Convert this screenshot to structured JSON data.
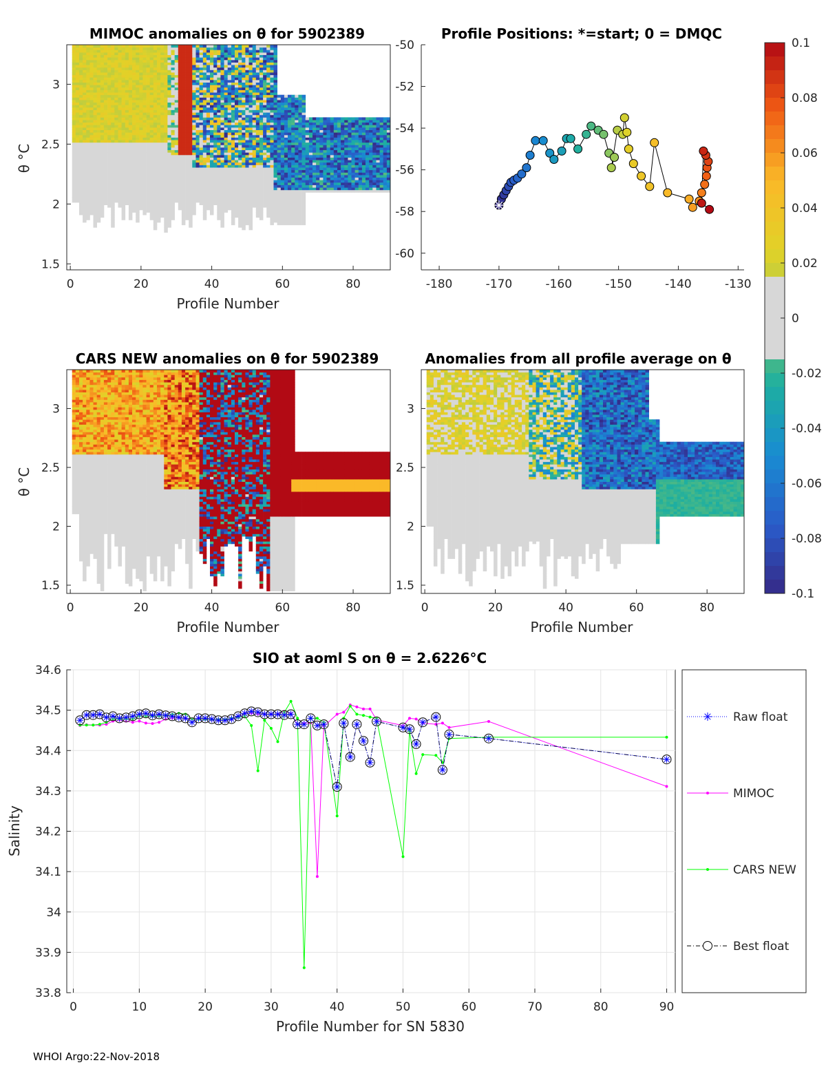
{
  "footer": "WHOI Argo:22-Nov-2018",
  "colorbar": {
    "ticks": [
      "0.1",
      "0.08",
      "0.06",
      "0.04",
      "0.02",
      "0",
      "-0.02",
      "-0.04",
      "-0.06",
      "-0.08",
      "-0.1"
    ],
    "range": [
      -0.1,
      0.1
    ]
  },
  "chart_data": [
    {
      "id": "mimoc",
      "type": "heatmap",
      "title": "MIMOC anomalies on θ  for 5902389",
      "xlabel": "Profile Number",
      "ylabel": "θ °C",
      "xlim": [
        -1,
        90.5
      ],
      "ylim": [
        1.45,
        3.33
      ],
      "xticks": [
        "0",
        "20",
        "40",
        "60",
        "80"
      ],
      "yticks": [
        "1.5",
        "2",
        "2.5",
        "3"
      ]
    },
    {
      "id": "positions",
      "type": "scatter",
      "title": "Profile Positions: *=start; 0 = DMQC",
      "xlim": [
        -183,
        -129
      ],
      "ylim": [
        -60.8,
        -50
      ],
      "xticks": [
        "-180",
        "-170",
        "-160",
        "-150",
        "-140",
        "-130"
      ],
      "yticks": [
        "-50",
        "-52",
        "-54",
        "-56",
        "-58",
        "-60"
      ],
      "lon": [
        -170,
        -169.6,
        -169.2,
        -168.8,
        -168.4,
        -168.0,
        -167.5,
        -166.9,
        -166.2,
        -165.4,
        -164.8,
        -163.9,
        -162.6,
        -161.5,
        -160.8,
        -159.5,
        -158.7,
        -158.0,
        -156.8,
        -155.4,
        -154.6,
        -153.4,
        -152.5,
        -151.6,
        -150.7,
        -151.2,
        -150.2,
        -149.3,
        -149.0,
        -148.6,
        -148.3,
        -147.5,
        -146.2,
        -144.8,
        -144.0,
        -141.8,
        -138.2,
        -137.6,
        -136.5,
        -136.1,
        -135.6,
        -135.3,
        -135.2,
        -135.0,
        -135.4,
        -135.8,
        -136.1,
        -134.8
      ],
      "lat": [
        -57.7,
        -57.4,
        -57.2,
        -57.0,
        -56.8,
        -56.6,
        -56.5,
        -56.4,
        -56.2,
        -55.9,
        -55.3,
        -54.6,
        -54.6,
        -55.2,
        -55.5,
        -55.1,
        -54.5,
        -54.5,
        -55.0,
        -54.3,
        -53.9,
        -54.1,
        -54.3,
        -55.2,
        -55.4,
        -55.9,
        -54.1,
        -54.3,
        -53.5,
        -54.2,
        -55.0,
        -55.7,
        -56.3,
        -56.8,
        -54.7,
        -57.1,
        -57.4,
        -57.8,
        -57.5,
        -57.1,
        -56.7,
        -56.3,
        -55.9,
        -55.6,
        -55.3,
        -55.1,
        -57.6,
        -57.9
      ],
      "start_marker": "*"
    },
    {
      "id": "cars",
      "type": "heatmap",
      "title": "CARS NEW anomalies on θ for 5902389",
      "xlabel": "Profile Number",
      "ylabel": "θ °C",
      "xlim": [
        -1,
        90.5
      ],
      "ylim": [
        1.43,
        3.33
      ],
      "xticks": [
        "0",
        "20",
        "40",
        "60",
        "80"
      ],
      "yticks": [
        "1.5",
        "2",
        "2.5",
        "3"
      ]
    },
    {
      "id": "allavg",
      "type": "heatmap",
      "title": "Anomalies from all profile average on θ",
      "xlabel": "Profile Number",
      "xlim": [
        -1,
        90.5
      ],
      "ylim": [
        1.43,
        3.33
      ],
      "xticks": [
        "0",
        "20",
        "40",
        "60",
        "80"
      ],
      "yticks": [
        "1.5",
        "2",
        "2.5",
        "3"
      ]
    },
    {
      "id": "salinity",
      "type": "line",
      "title": "SIO at aoml S on θ = 2.6226°C",
      "xlabel": "Profile Number for SN 5830",
      "ylabel": "Salinity",
      "xlim": [
        -1,
        91.3
      ],
      "ylim": [
        33.8,
        34.6
      ],
      "xticks": [
        "0",
        "10",
        "20",
        "30",
        "40",
        "50",
        "60",
        "70",
        "80",
        "90"
      ],
      "yticks": [
        "34.6",
        "34.5",
        "34.4",
        "34.3",
        "34.2",
        "34.1",
        "34",
        "33.9",
        "33.8"
      ],
      "legend": [
        "Raw float",
        "MIMOC",
        "CARS NEW",
        "Best float"
      ],
      "series": [
        {
          "name": "Raw float",
          "color": "#0000ff",
          "x": [
            1,
            2,
            3,
            4,
            5,
            6,
            7,
            8,
            9,
            10,
            11,
            12,
            13,
            14,
            15,
            16,
            17,
            18,
            19,
            20,
            21,
            22,
            23,
            24,
            25,
            26,
            27,
            28,
            29,
            30,
            31,
            32,
            33,
            34,
            35,
            36,
            37,
            38,
            40,
            41,
            42,
            43,
            44,
            45,
            46,
            50,
            51,
            52,
            53,
            55,
            56,
            57,
            63,
            90
          ],
          "y": [
            34.475,
            34.488,
            34.488,
            34.49,
            34.482,
            34.485,
            34.48,
            34.482,
            34.485,
            34.49,
            34.492,
            34.487,
            34.49,
            34.487,
            34.485,
            34.482,
            34.48,
            34.47,
            34.48,
            34.48,
            34.478,
            34.475,
            34.475,
            34.478,
            34.485,
            34.492,
            34.497,
            34.495,
            34.49,
            34.49,
            34.49,
            34.488,
            34.49,
            34.465,
            34.465,
            34.48,
            34.462,
            34.465,
            34.31,
            34.468,
            34.384,
            34.465,
            34.424,
            34.37,
            34.472,
            34.457,
            34.453,
            34.416,
            34.47,
            34.483,
            34.352,
            34.44,
            34.43,
            34.378
          ]
        },
        {
          "name": "MIMOC",
          "color": "#ff00ff",
          "x": [
            1,
            2,
            3,
            4,
            5,
            6,
            7,
            8,
            9,
            10,
            11,
            12,
            13,
            14,
            15,
            16,
            17,
            18,
            19,
            20,
            21,
            22,
            23,
            24,
            25,
            26,
            27,
            28,
            29,
            30,
            31,
            32,
            33,
            34,
            35,
            36,
            37,
            38,
            40,
            41,
            42,
            43,
            44,
            45,
            46,
            50,
            51,
            52,
            53,
            55,
            56,
            57,
            63,
            90
          ],
          "y": [
            34.462,
            34.464,
            34.463,
            34.463,
            34.465,
            34.473,
            34.475,
            34.473,
            34.47,
            34.473,
            34.468,
            34.467,
            34.47,
            34.478,
            34.48,
            34.482,
            34.48,
            34.478,
            34.48,
            34.478,
            34.476,
            34.476,
            34.476,
            34.478,
            34.482,
            34.492,
            34.492,
            34.49,
            34.49,
            34.49,
            34.49,
            34.497,
            34.492,
            34.465,
            34.468,
            34.468,
            34.088,
            34.46,
            34.49,
            34.495,
            34.513,
            34.508,
            34.503,
            34.503,
            34.476,
            34.462,
            34.48,
            34.478,
            34.468,
            34.465,
            34.468,
            34.457,
            34.472,
            34.311
          ]
        },
        {
          "name": "CARS NEW",
          "color": "#00ff00",
          "x": [
            1,
            2,
            3,
            4,
            5,
            6,
            7,
            8,
            9,
            10,
            11,
            12,
            13,
            14,
            15,
            16,
            17,
            18,
            19,
            20,
            21,
            22,
            23,
            24,
            25,
            26,
            27,
            28,
            29,
            30,
            31,
            32,
            33,
            34,
            35,
            36,
            37,
            38,
            40,
            41,
            42,
            43,
            44,
            45,
            46,
            50,
            51,
            52,
            53,
            55,
            56,
            57,
            63,
            90
          ],
          "y": [
            34.463,
            34.463,
            34.463,
            34.465,
            34.47,
            34.478,
            34.478,
            34.478,
            34.478,
            34.485,
            34.485,
            34.485,
            34.485,
            34.487,
            34.49,
            34.492,
            34.49,
            34.478,
            34.477,
            34.477,
            34.477,
            34.477,
            34.477,
            34.48,
            34.482,
            34.485,
            34.462,
            34.35,
            34.475,
            34.455,
            34.422,
            34.495,
            34.522,
            34.48,
            33.862,
            34.48,
            34.48,
            34.47,
            34.238,
            34.48,
            34.51,
            34.49,
            34.487,
            34.483,
            34.48,
            34.137,
            34.447,
            34.343,
            34.39,
            34.388,
            34.37,
            34.43,
            34.433,
            34.433
          ]
        },
        {
          "name": "Best float",
          "color": "#000000",
          "x": [
            1,
            2,
            3,
            4,
            5,
            6,
            7,
            8,
            9,
            10,
            11,
            12,
            13,
            14,
            15,
            16,
            17,
            18,
            19,
            20,
            21,
            22,
            23,
            24,
            25,
            26,
            27,
            28,
            29,
            30,
            31,
            32,
            33,
            34,
            35,
            36,
            37,
            38,
            40,
            41,
            42,
            43,
            44,
            45,
            46,
            50,
            51,
            52,
            53,
            55,
            56,
            57,
            63,
            90
          ],
          "y": [
            34.475,
            34.488,
            34.488,
            34.49,
            34.482,
            34.485,
            34.48,
            34.482,
            34.485,
            34.49,
            34.492,
            34.487,
            34.49,
            34.487,
            34.485,
            34.482,
            34.48,
            34.47,
            34.48,
            34.48,
            34.478,
            34.475,
            34.475,
            34.478,
            34.485,
            34.492,
            34.497,
            34.495,
            34.49,
            34.49,
            34.49,
            34.488,
            34.49,
            34.465,
            34.465,
            34.48,
            34.462,
            34.465,
            34.31,
            34.468,
            34.384,
            34.465,
            34.424,
            34.37,
            34.472,
            34.457,
            34.453,
            34.416,
            34.47,
            34.483,
            34.352,
            34.44,
            34.43,
            34.378
          ]
        }
      ]
    }
  ]
}
